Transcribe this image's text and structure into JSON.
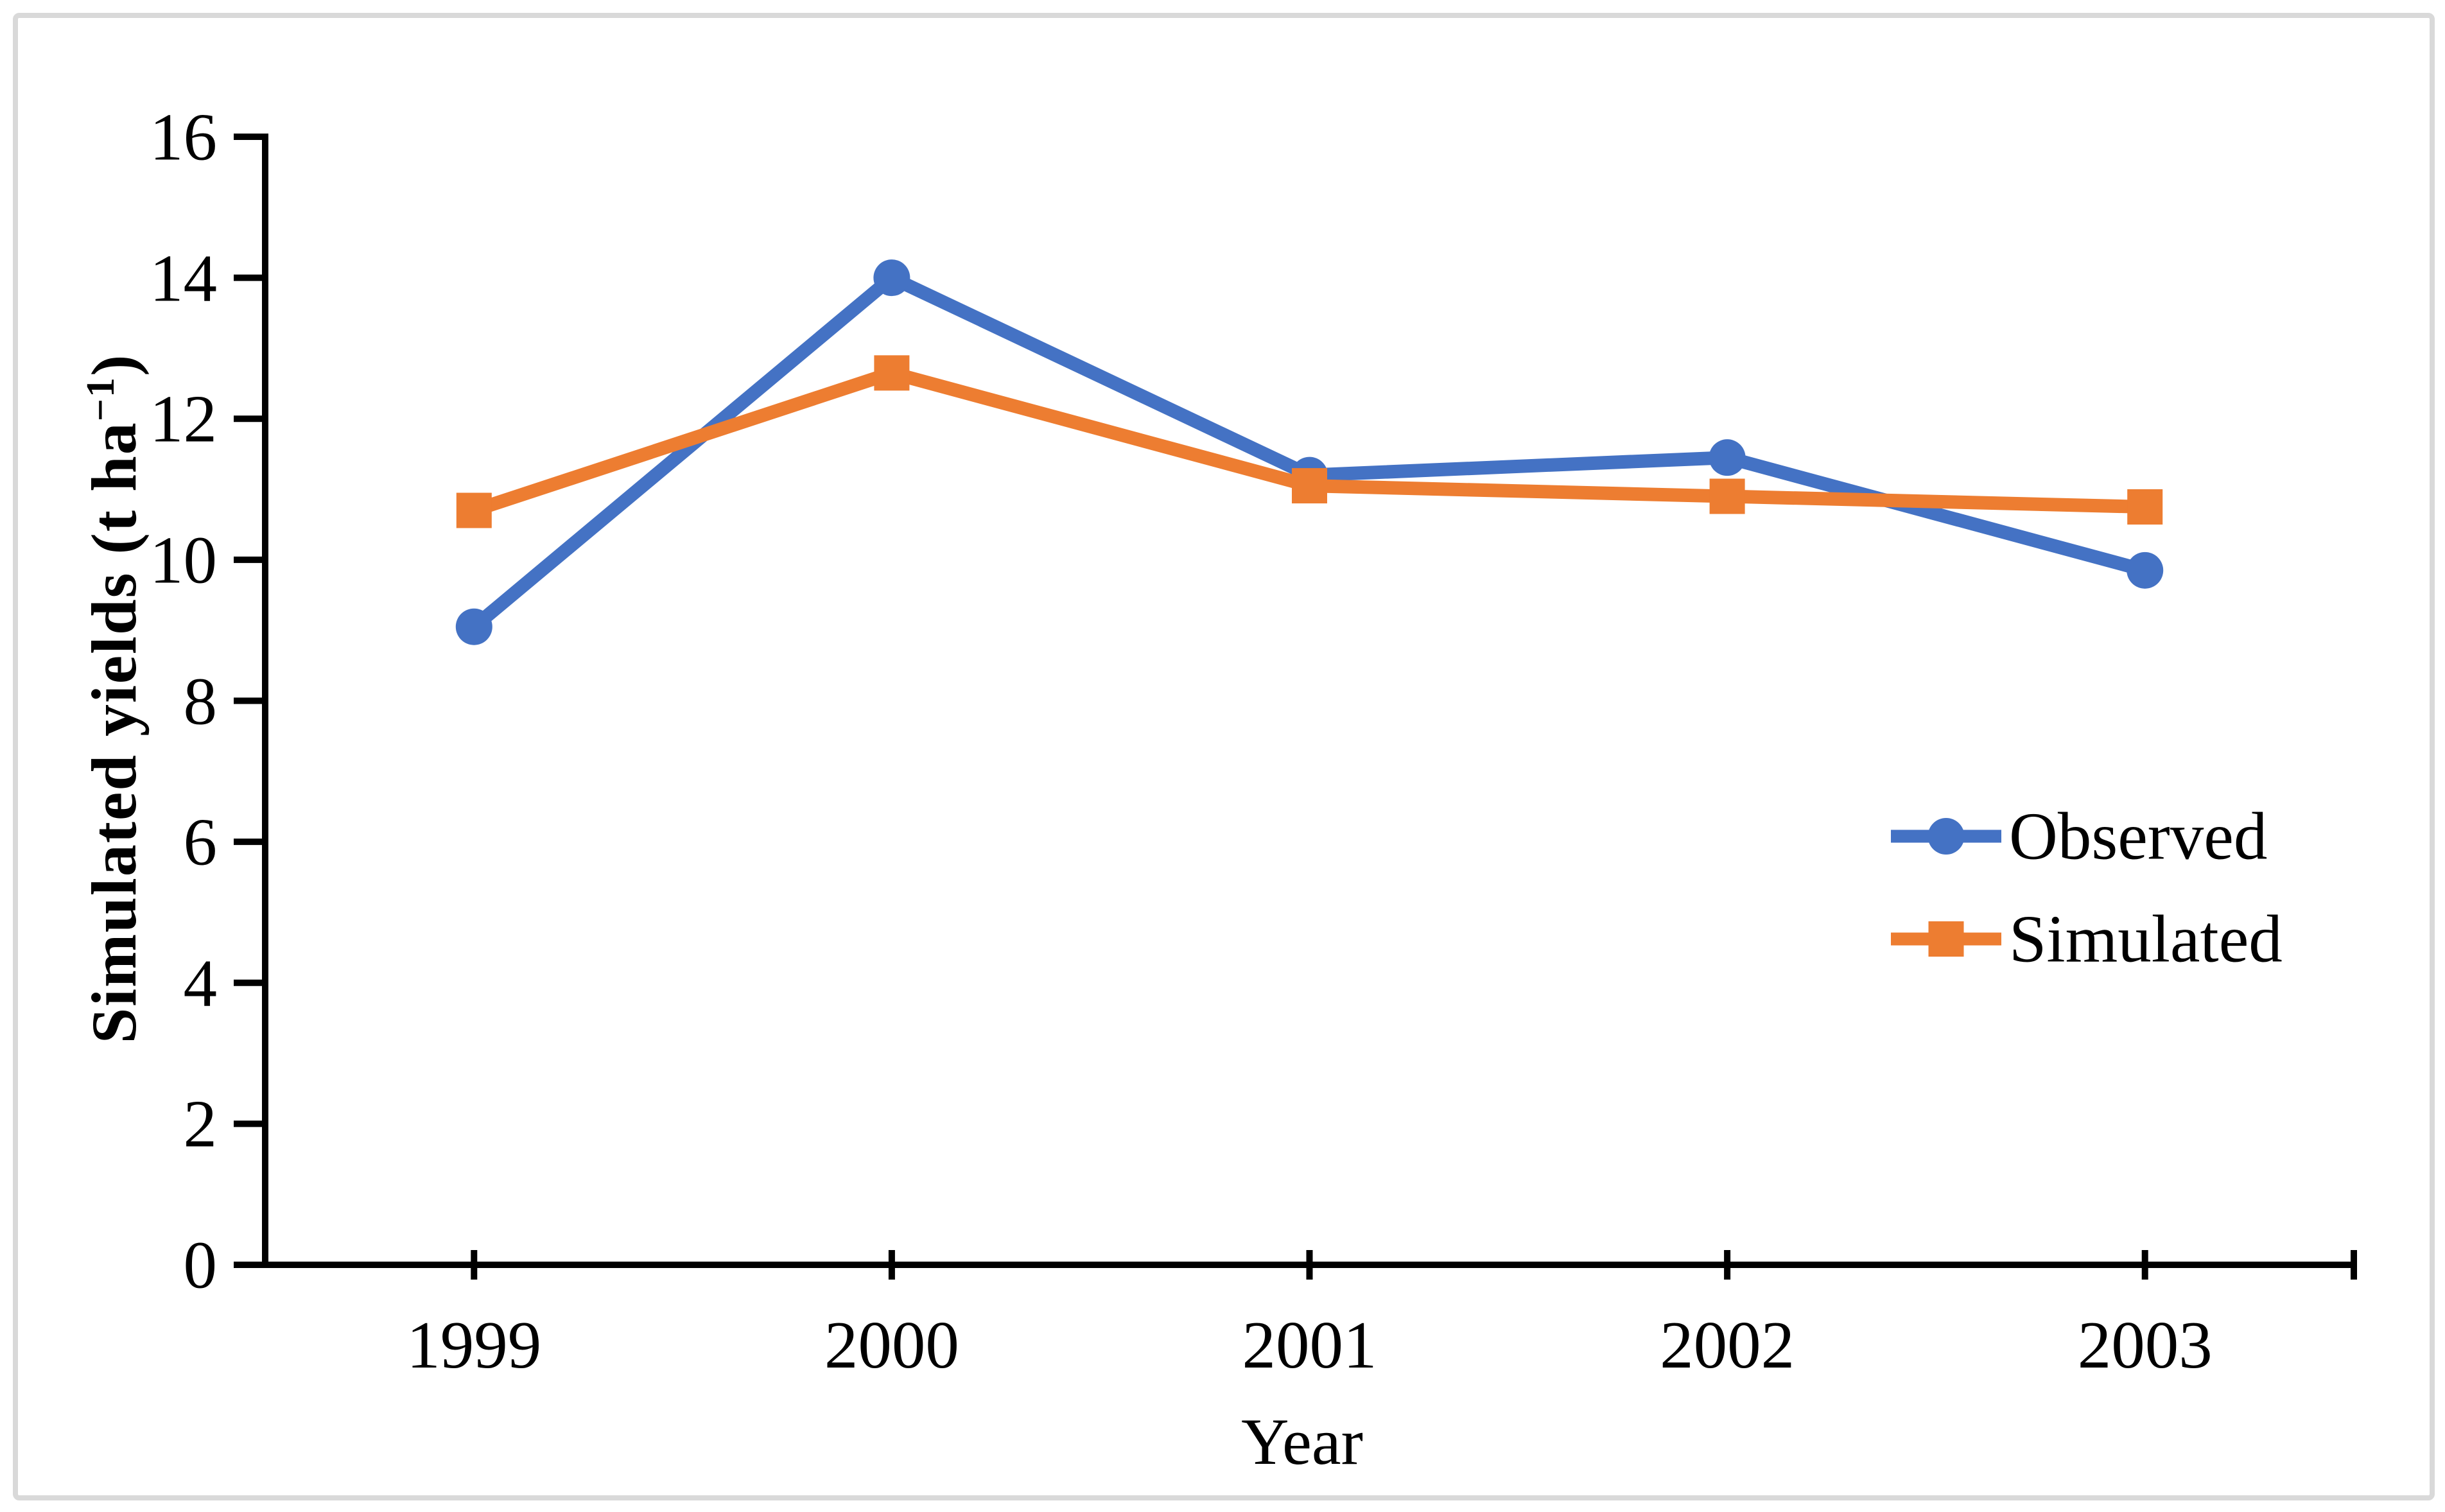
{
  "figure": {
    "background": "#FFFFFF",
    "border_color": "#D9D9D9",
    "axis_color": "#000000"
  },
  "chart_data": {
    "type": "line",
    "categories": [
      "1999",
      "2000",
      "2001",
      "2002",
      "2003"
    ],
    "series": [
      {
        "name": "Observed",
        "marker": "circle",
        "color": "#4472C4",
        "values": [
          9.05,
          14.0,
          11.2,
          11.45,
          9.85
        ]
      },
      {
        "name": "Simulated",
        "marker": "square",
        "color": "#ED7D31",
        "values": [
          10.7,
          12.65,
          11.05,
          10.9,
          10.75
        ]
      }
    ],
    "title": "",
    "xlabel": "Year",
    "ylabel": "Simulated yields (t ha−1)",
    "ylim": [
      0,
      16
    ],
    "y_tick_step": 2,
    "y_ticks": [
      "0",
      "2",
      "4",
      "6",
      "8",
      "10",
      "12",
      "14",
      "16"
    ],
    "grid": false,
    "legend_position": "right-middle",
    "tick_style": "cross"
  },
  "axes": {
    "x": {
      "title": "Year"
    },
    "y": {
      "title_prefix": "Simulated yields (t ha",
      "title_sup": "−1",
      "title_suffix": ")"
    }
  }
}
